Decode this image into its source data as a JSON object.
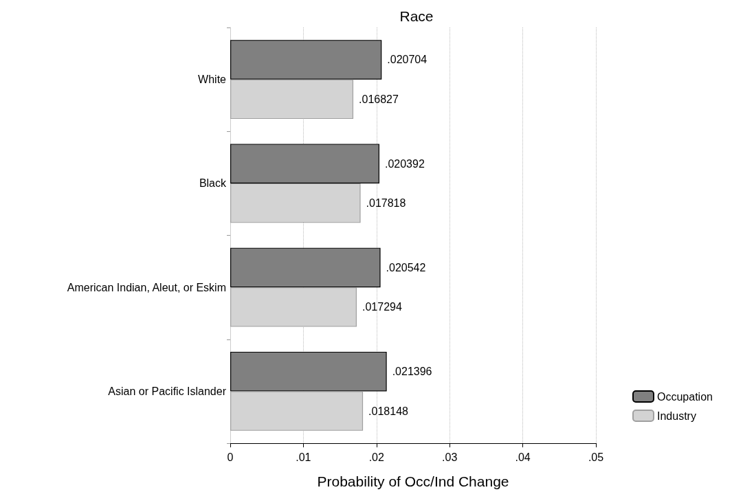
{
  "chart_data": {
    "type": "bar",
    "orientation": "horizontal",
    "title": "Race",
    "xlabel": "Probability of Occ/Ind Change",
    "categories": [
      "White",
      "Black",
      "American Indian, Aleut, or Eskim",
      "Asian or Pacific Islander"
    ],
    "series": [
      {
        "name": "Occupation",
        "color": "#808080",
        "values": [
          0.020704,
          0.020392,
          0.020542,
          0.021396
        ],
        "value_labels": [
          ".020704",
          ".020392",
          ".020542",
          ".021396"
        ]
      },
      {
        "name": "Industry",
        "color": "#d3d3d3",
        "values": [
          0.016827,
          0.017818,
          0.017294,
          0.018148
        ],
        "value_labels": [
          ".016827",
          ".017818",
          ".017294",
          ".018148"
        ]
      }
    ],
    "xlim": [
      0,
      0.05
    ],
    "xticks": [
      0,
      {
        "value": 0.01,
        "label": ".01"
      },
      {
        "value": 0.02,
        "label": ".02"
      },
      {
        "value": 0.03,
        "label": ".03"
      },
      {
        "value": 0.04,
        "label": ".04"
      },
      {
        "value": 0.05,
        "label": ".05"
      }
    ],
    "grid": "x",
    "legend": "right"
  }
}
